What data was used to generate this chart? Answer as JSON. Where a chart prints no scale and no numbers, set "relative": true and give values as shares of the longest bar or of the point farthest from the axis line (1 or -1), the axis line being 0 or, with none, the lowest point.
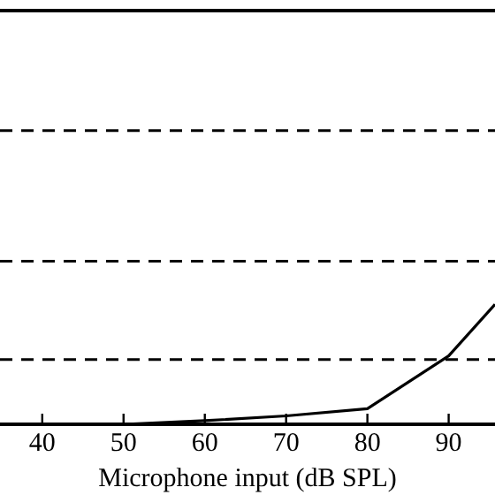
{
  "chart_data": {
    "type": "line",
    "relative": true,
    "xlabel": "Microphone input (dB SPL)",
    "x": [
      40,
      50,
      60,
      70,
      80,
      90,
      95.7
    ],
    "series": [
      {
        "color": "#000000",
        "values": [
          0,
          0,
          0.03,
          0.07,
          0.13,
          0.57,
          1
        ]
      }
    ],
    "xlim": [
      34.8,
      95.7
    ],
    "xticks": [
      40,
      50,
      60,
      70,
      80,
      90
    ],
    "ylim": [
      0,
      3.45
    ],
    "ref_lines": [
      {
        "axis": "y",
        "value": 0.54,
        "line_style": "dashed",
        "color": "#000000"
      },
      {
        "axis": "y",
        "value": 1.36,
        "line_style": "dashed",
        "color": "#000000"
      },
      {
        "axis": "y",
        "value": 2.45,
        "line_style": "dashed",
        "color": "#000000"
      }
    ],
    "grid": false,
    "legend": false,
    "marker": "none",
    "line_style": "solid"
  }
}
